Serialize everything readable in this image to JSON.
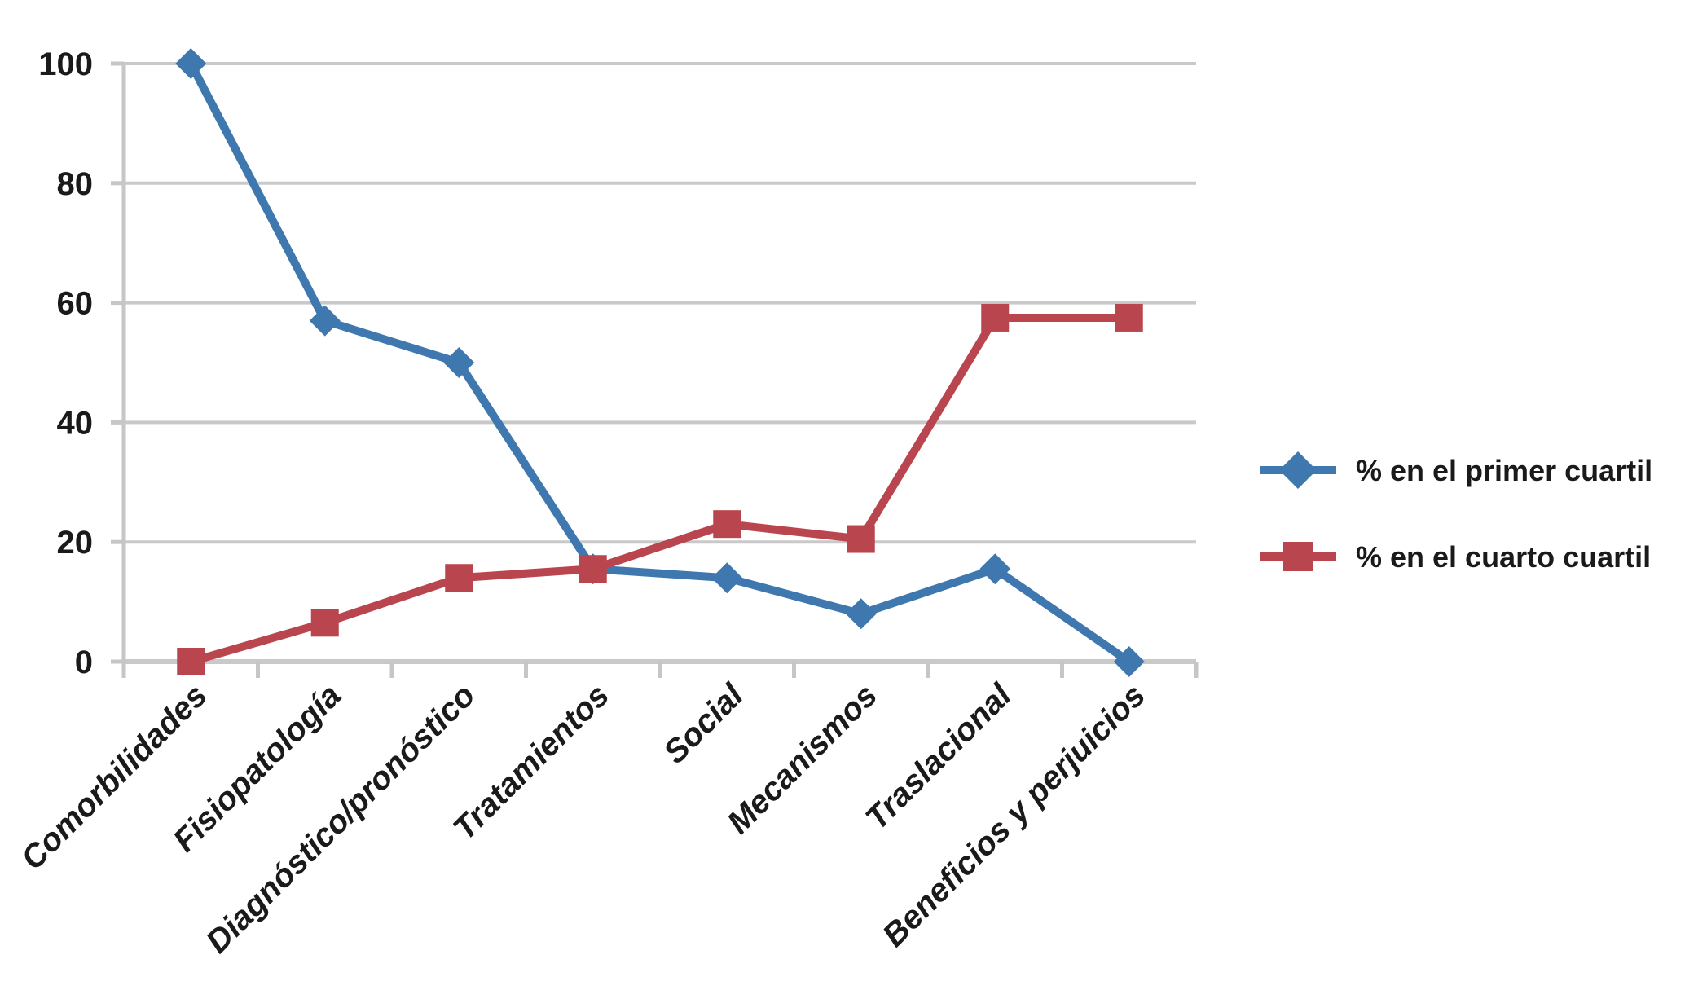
{
  "figure": {
    "background": "#FFFFFF"
  },
  "chart_data": {
    "type": "line",
    "title": "",
    "xlabel": "",
    "ylabel": "",
    "categories": [
      "Comorbilidades",
      "Fisiopatología",
      "Diagnóstico/pronóstico",
      "Tratamientos",
      "Social",
      "Mecanismos",
      "Traslacional",
      "Beneficios y perjuicios"
    ],
    "series": [
      {
        "name": "% en el primer cuartil",
        "marker": "diamond",
        "color": "#3F78AF",
        "values": [
          100,
          57,
          50,
          15.5,
          14,
          8,
          15.5,
          0
        ]
      },
      {
        "name": "% en el cuarto cuartil",
        "marker": "square",
        "color": "#B9464E",
        "values": [
          0,
          6.5,
          14,
          15.5,
          23,
          20.5,
          57.5,
          57.5
        ]
      }
    ],
    "ylim": [
      0,
      100
    ],
    "y_ticks": [
      0,
      20,
      40,
      60,
      80,
      100
    ],
    "grid": "horizontal-only",
    "legend_position": "right-middle",
    "styles": {
      "gridline_color": "#C9C9C9",
      "axis_color": "#C6C6C6",
      "text_color": "#1A1A1A",
      "background": "#FFFFFF"
    }
  }
}
